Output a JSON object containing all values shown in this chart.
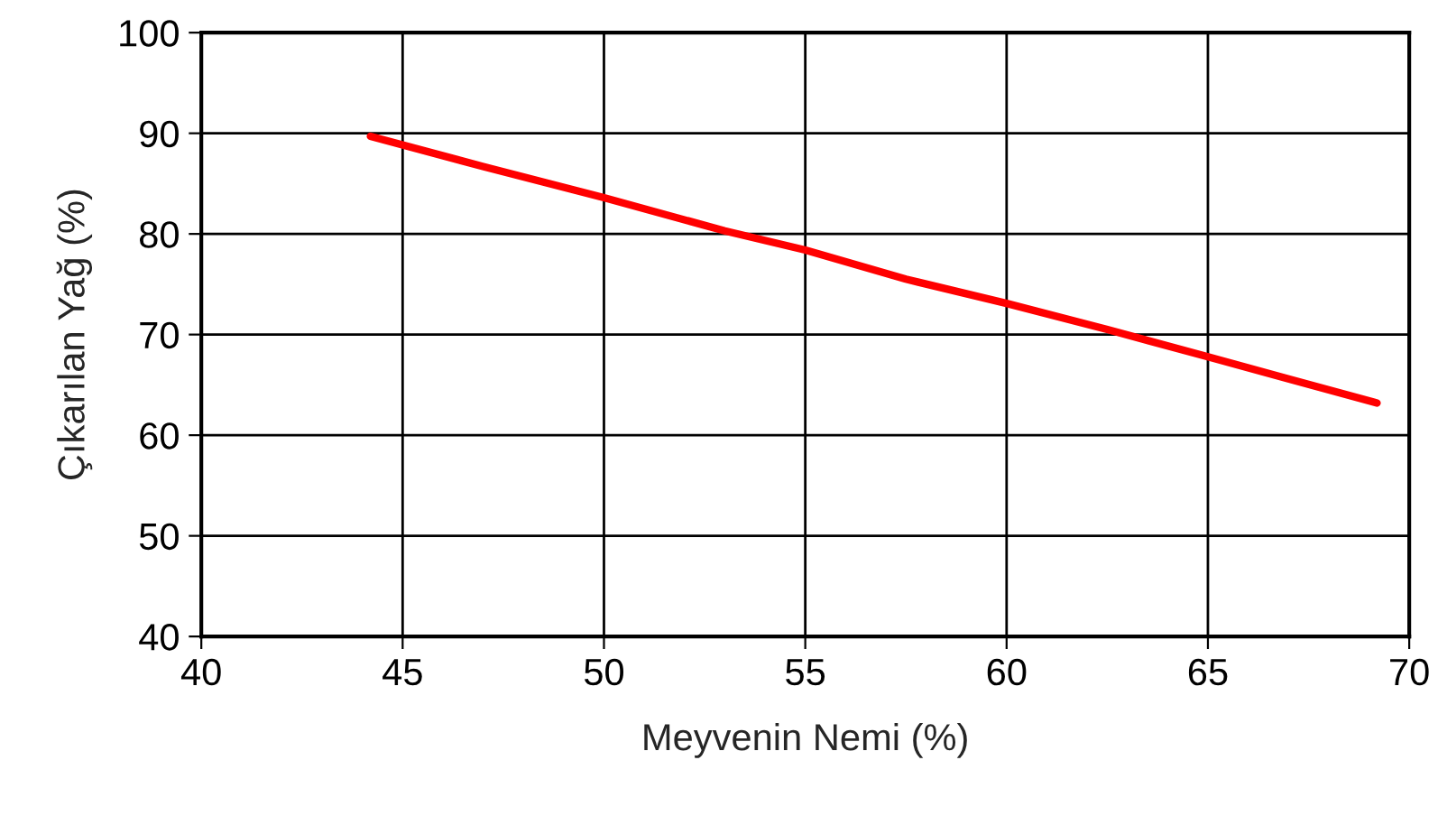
{
  "chart_data": {
    "type": "line",
    "xlabel": "Meyvenin Nemi (%)",
    "ylabel": "Çıkarılan Yağ (%)",
    "x": [
      44.2,
      47,
      50,
      53,
      55,
      57.5,
      60,
      62.5,
      65,
      67,
      69.2
    ],
    "series": [
      {
        "color": "#ff0000",
        "values": [
          89.7,
          86.7,
          83.6,
          80.3,
          78.4,
          75.5,
          73.1,
          70.5,
          67.8,
          65.6,
          63.2
        ]
      }
    ],
    "xlim": [
      40,
      70
    ],
    "xticks": [
      40,
      45,
      50,
      55,
      60,
      65,
      70
    ],
    "ylim": [
      40,
      100
    ],
    "yticks": [
      40,
      50,
      60,
      70,
      80,
      90,
      100
    ],
    "grid": true,
    "marker": "none",
    "line_style": "solid"
  }
}
